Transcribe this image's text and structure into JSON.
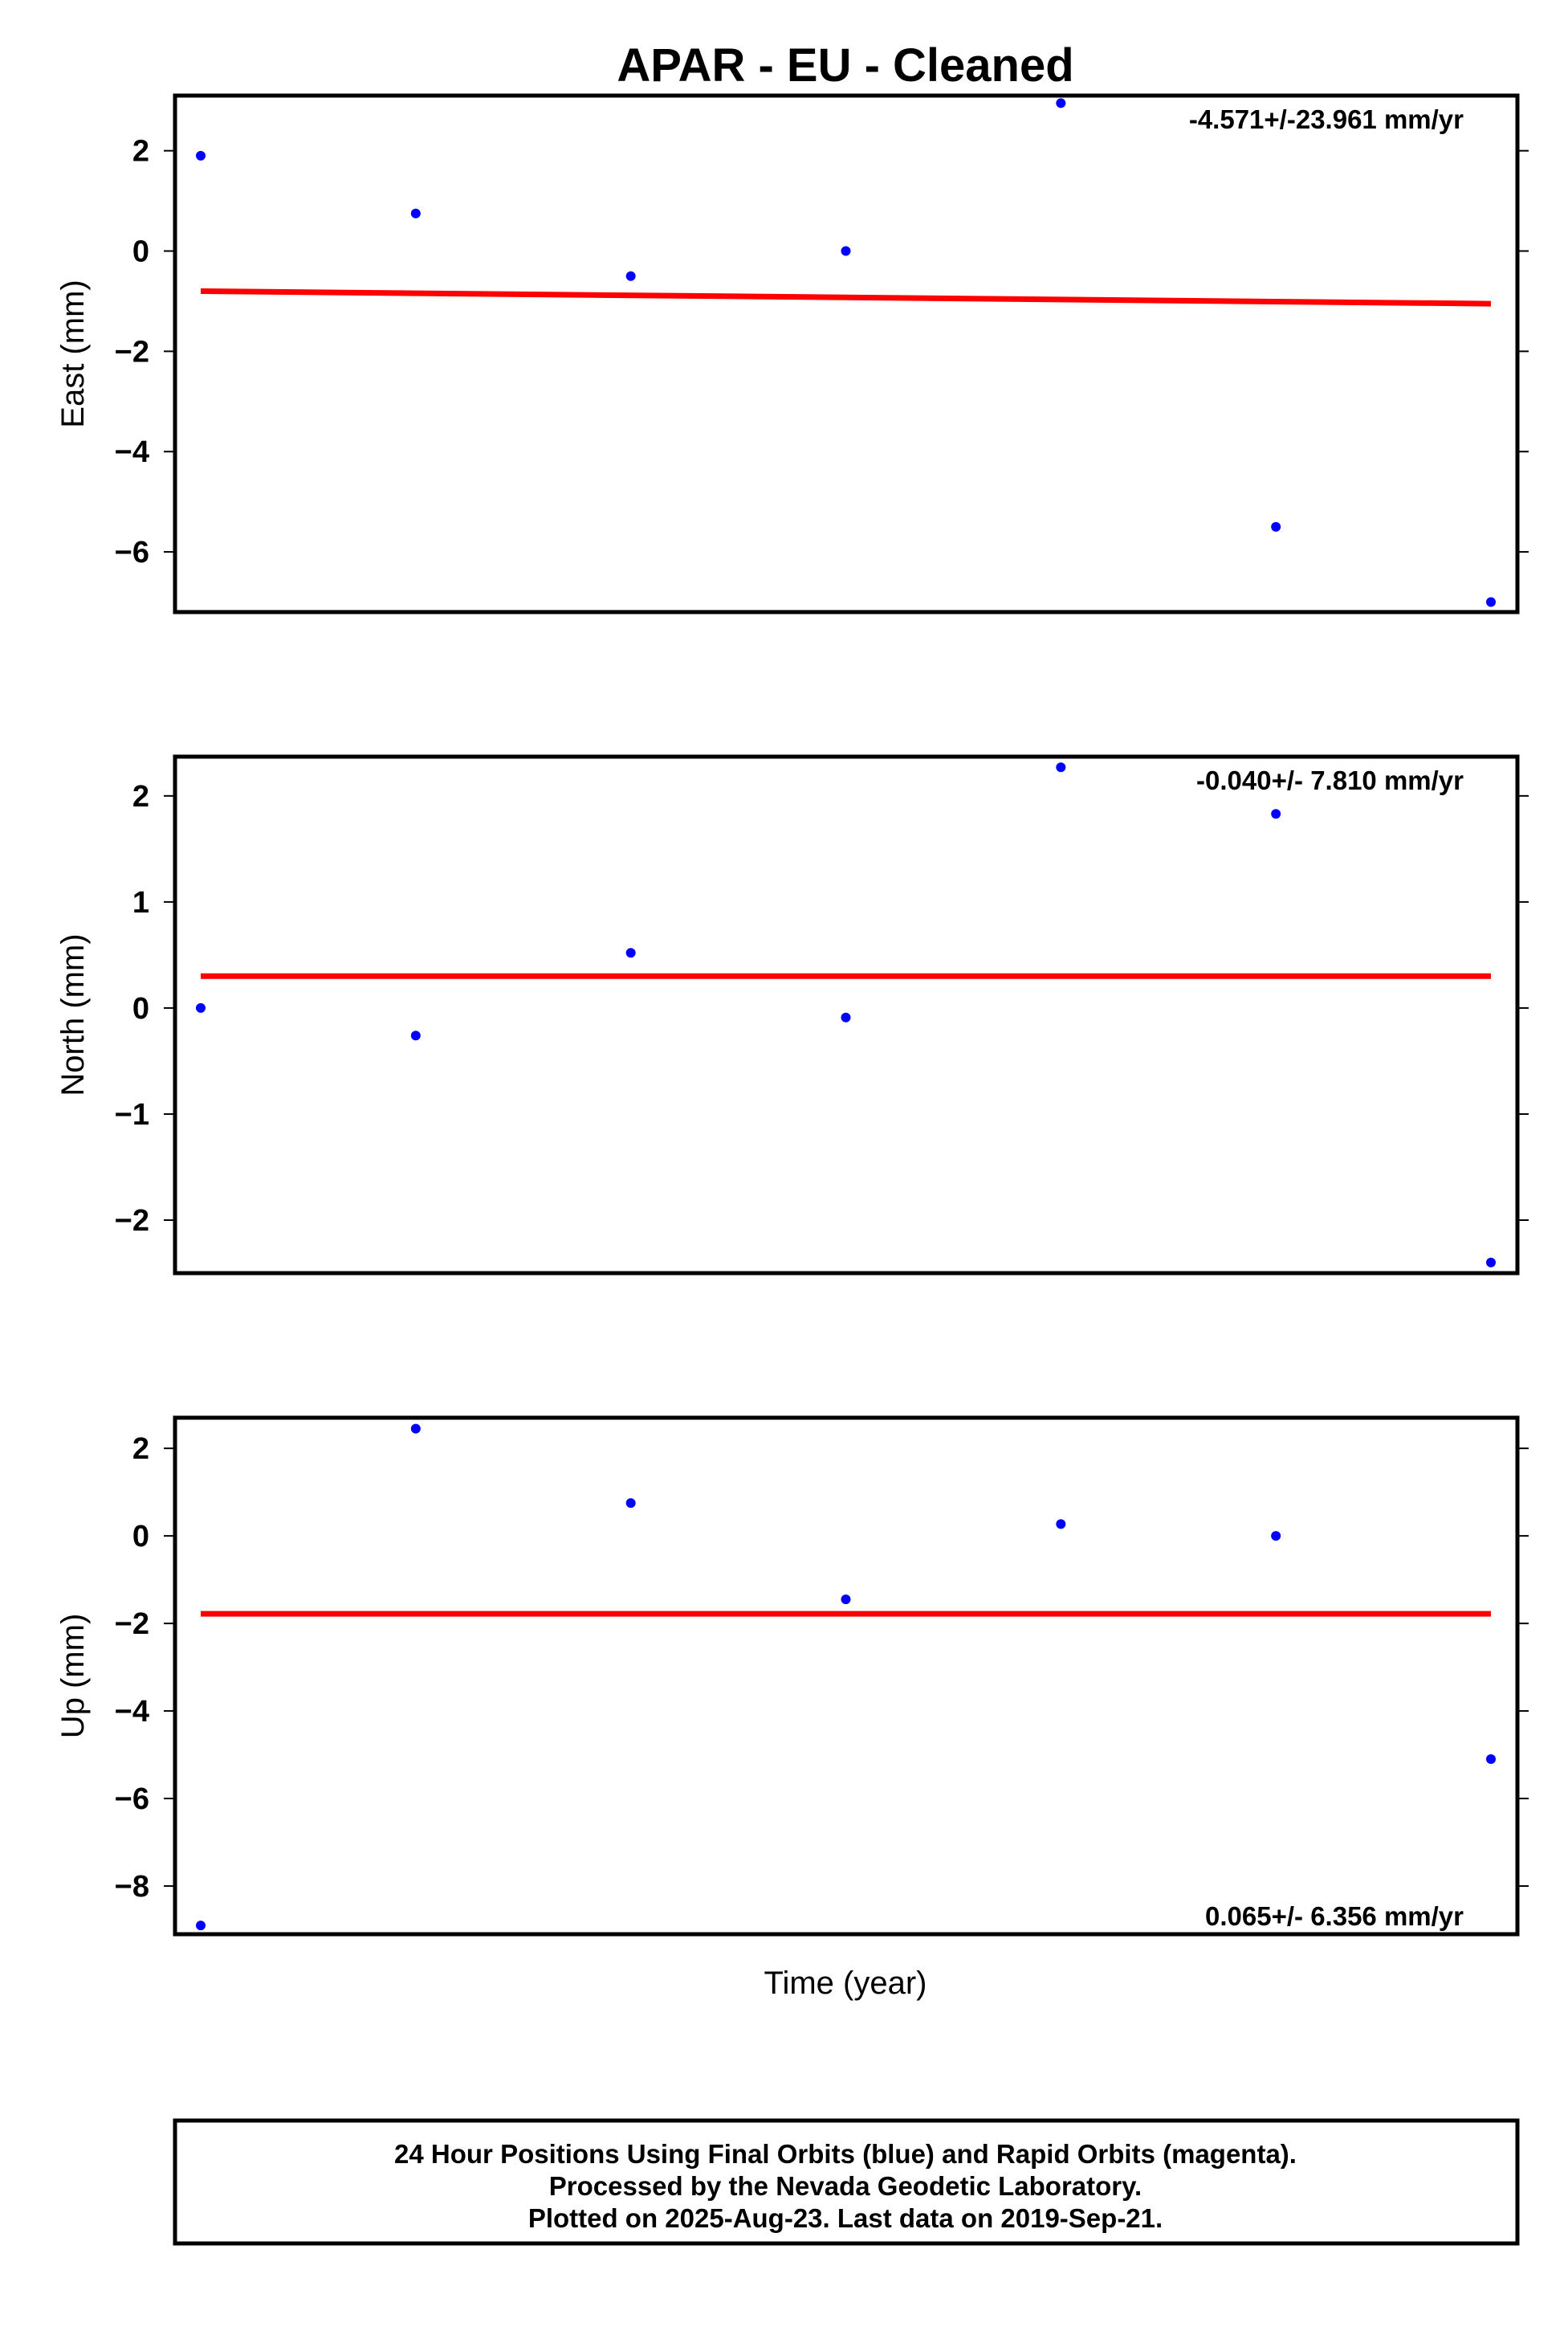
{
  "chart_data": {
    "type": "scatter",
    "title": "APAR  - EU - Cleaned",
    "xlabel": "Time (year)",
    "colors": {
      "points": "#0000ff",
      "fit": "#ff0000",
      "frame": "#000000"
    },
    "x": [
      1,
      2,
      3,
      4,
      5,
      6,
      7
    ],
    "panels": [
      {
        "ylabel": "East (mm)",
        "ylim": [
          -7.2,
          3.1
        ],
        "yticks": [
          2,
          0,
          -2,
          -4,
          -6
        ],
        "yticklabels": [
          "2",
          "0",
          "−2",
          "−4",
          "−6"
        ],
        "values": [
          1.9,
          0.75,
          -0.5,
          0.0,
          2.95,
          -5.5,
          -7.0
        ],
        "fit": [
          -0.8,
          -1.05
        ],
        "rate": "-4.571+/-23.961 mm/yr",
        "rate_position": "top-right"
      },
      {
        "ylabel": "North (mm)",
        "ylim": [
          -2.5,
          2.37
        ],
        "yticks": [
          2,
          1,
          0,
          -1,
          -2
        ],
        "yticklabels": [
          "2",
          "1",
          "0",
          "−1",
          "−2"
        ],
        "values": [
          0.0,
          -0.26,
          0.52,
          -0.09,
          2.27,
          1.83,
          -2.4
        ],
        "fit": [
          0.3,
          0.3
        ],
        "rate": "-0.040+/- 7.810 mm/yr",
        "rate_position": "top-right"
      },
      {
        "ylabel": "Up (mm)",
        "ylim": [
          -9.1,
          2.7
        ],
        "yticks": [
          2,
          0,
          -2,
          -4,
          -6,
          -8
        ],
        "yticklabels": [
          "2",
          "0",
          "−2",
          "−4",
          "−6",
          "−8"
        ],
        "values": [
          -8.9,
          2.45,
          0.75,
          -1.45,
          0.27,
          0.0,
          -5.1
        ],
        "fit": [
          -1.78,
          -1.78
        ],
        "rate": "0.065+/- 6.356 mm/yr",
        "rate_position": "bottom-right"
      }
    ]
  },
  "footer": {
    "line1": "24 Hour Positions Using Final Orbits (blue) and Rapid Orbits (magenta).",
    "line2": "Processed by the Nevada Geodetic Laboratory.",
    "line3": "Plotted on 2025-Aug-23. Last data on 2019-Sep-21."
  }
}
